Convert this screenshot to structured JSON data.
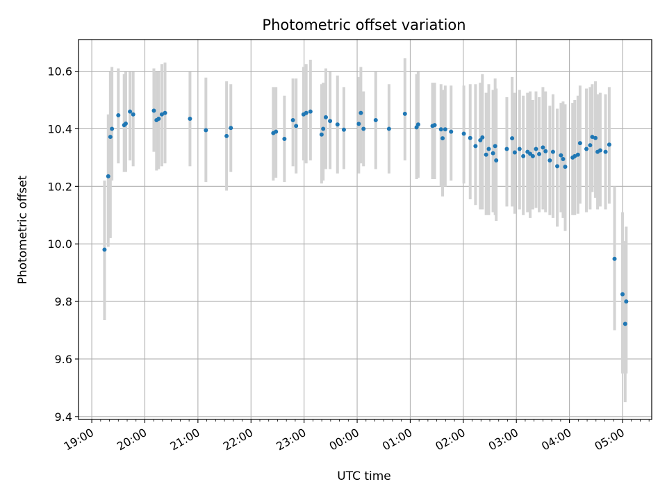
{
  "chart_data": {
    "type": "scatter",
    "title": "Photometric offset variation",
    "xlabel": "UTC time",
    "ylabel": "Photometric offset",
    "x_unit": "hours since 19:00 UTC",
    "xlim": [
      -0.25,
      10.55
    ],
    "ylim": [
      9.39,
      10.71
    ],
    "grid": true,
    "marker_color": "#1f77b4",
    "errorbar_color": "#d3d3d3",
    "x_ticks": [
      {
        "value": 0,
        "label": "19:00"
      },
      {
        "value": 1,
        "label": "20:00"
      },
      {
        "value": 2,
        "label": "21:00"
      },
      {
        "value": 3,
        "label": "22:00"
      },
      {
        "value": 4,
        "label": "23:00"
      },
      {
        "value": 5,
        "label": "00:00"
      },
      {
        "value": 6,
        "label": "01:00"
      },
      {
        "value": 7,
        "label": "02:00"
      },
      {
        "value": 8,
        "label": "03:00"
      },
      {
        "value": 9,
        "label": "04:00"
      },
      {
        "value": 10,
        "label": "05:00"
      }
    ],
    "y_ticks": [
      {
        "value": 9.4,
        "label": "9.4"
      },
      {
        "value": 9.6,
        "label": "9.6"
      },
      {
        "value": 9.8,
        "label": "9.8"
      },
      {
        "value": 10.0,
        "label": "10.0"
      },
      {
        "value": 10.2,
        "label": "10.2"
      },
      {
        "value": 10.4,
        "label": "10.4"
      },
      {
        "value": 10.6,
        "label": "10.6"
      }
    ],
    "series": [
      {
        "name": "offset",
        "x": [
          0.24,
          0.31,
          0.35,
          0.38,
          0.5,
          0.61,
          0.64,
          0.72,
          0.78,
          1.17,
          1.22,
          1.26,
          1.32,
          1.38,
          1.85,
          2.15,
          2.54,
          2.62,
          3.42,
          3.47,
          3.63,
          3.79,
          3.85,
          3.99,
          4.04,
          4.12,
          4.33,
          4.36,
          4.41,
          4.49,
          4.63,
          4.75,
          5.03,
          5.07,
          5.12,
          5.35,
          5.6,
          5.9,
          6.12,
          6.15,
          6.42,
          6.46,
          6.58,
          6.61,
          6.66,
          6.77,
          7.01,
          7.13,
          7.23,
          7.32,
          7.36,
          7.43,
          7.48,
          7.56,
          7.6,
          7.62,
          7.82,
          7.92,
          7.97,
          8.06,
          8.13,
          8.21,
          8.26,
          8.31,
          8.37,
          8.43,
          8.5,
          8.55,
          8.63,
          8.69,
          8.77,
          8.84,
          8.88,
          8.92,
          9.06,
          9.1,
          9.16,
          9.2,
          9.32,
          9.39,
          9.43,
          9.49,
          9.53,
          9.58,
          9.68,
          9.75,
          9.85,
          10.0,
          10.05,
          10.07
        ],
        "y": [
          9.98,
          10.235,
          10.372,
          10.4,
          10.447,
          10.413,
          10.418,
          10.46,
          10.45,
          10.463,
          10.43,
          10.435,
          10.45,
          10.455,
          10.435,
          10.395,
          10.375,
          10.403,
          10.385,
          10.39,
          10.365,
          10.43,
          10.41,
          10.45,
          10.455,
          10.46,
          10.38,
          10.4,
          10.44,
          10.427,
          10.415,
          10.397,
          10.417,
          10.455,
          10.4,
          10.43,
          10.4,
          10.452,
          10.405,
          10.415,
          10.41,
          10.413,
          10.398,
          10.367,
          10.398,
          10.39,
          10.383,
          10.368,
          10.34,
          10.36,
          10.37,
          10.31,
          10.33,
          10.315,
          10.34,
          10.29,
          10.33,
          10.367,
          10.318,
          10.33,
          10.305,
          10.32,
          10.313,
          10.305,
          10.33,
          10.312,
          10.335,
          10.322,
          10.29,
          10.32,
          10.27,
          10.308,
          10.295,
          10.268,
          10.3,
          10.305,
          10.31,
          10.35,
          10.33,
          10.343,
          10.372,
          10.368,
          10.32,
          10.325,
          10.32,
          10.345,
          9.948,
          9.825,
          9.722,
          9.8
        ],
        "yerr_low": [
          9.735,
          9.99,
          10.02,
          10.22,
          10.28,
          10.25,
          10.25,
          10.29,
          10.27,
          10.32,
          10.255,
          10.26,
          10.27,
          10.28,
          10.27,
          10.215,
          10.185,
          10.25,
          10.22,
          10.23,
          10.215,
          10.27,
          10.245,
          10.29,
          10.28,
          10.29,
          10.21,
          10.22,
          10.26,
          10.26,
          10.245,
          10.26,
          10.245,
          10.28,
          10.27,
          10.26,
          10.245,
          10.29,
          10.225,
          10.23,
          10.225,
          10.225,
          10.2,
          10.165,
          10.2,
          10.22,
          10.21,
          10.155,
          10.135,
          10.12,
          10.12,
          10.1,
          10.1,
          10.11,
          10.1,
          10.08,
          10.13,
          10.13,
          10.105,
          10.12,
          10.1,
          10.11,
          10.09,
          10.12,
          10.125,
          10.11,
          10.12,
          10.11,
          10.1,
          10.09,
          10.06,
          10.11,
          10.09,
          10.045,
          10.1,
          10.1,
          10.105,
          10.14,
          10.11,
          10.12,
          10.18,
          10.16,
          10.12,
          10.13,
          10.12,
          10.14,
          9.7,
          9.55,
          9.45,
          9.55
        ],
        "yerr_high": [
          10.22,
          10.45,
          10.6,
          10.615,
          10.61,
          10.59,
          10.6,
          10.6,
          10.6,
          10.61,
          10.6,
          10.6,
          10.625,
          10.63,
          10.6,
          10.578,
          10.565,
          10.555,
          10.545,
          10.545,
          10.515,
          10.575,
          10.575,
          10.615,
          10.625,
          10.64,
          10.555,
          10.56,
          10.61,
          10.6,
          10.585,
          10.545,
          10.58,
          10.615,
          10.53,
          10.6,
          10.555,
          10.645,
          10.59,
          10.6,
          10.56,
          10.56,
          10.555,
          10.535,
          10.55,
          10.55,
          10.55,
          10.555,
          10.555,
          10.56,
          10.59,
          10.525,
          10.555,
          10.535,
          10.575,
          10.54,
          10.51,
          10.58,
          10.525,
          10.535,
          10.515,
          10.525,
          10.53,
          10.5,
          10.53,
          10.51,
          10.545,
          10.53,
          10.48,
          10.52,
          10.47,
          10.49,
          10.495,
          10.485,
          10.49,
          10.5,
          10.515,
          10.55,
          10.54,
          10.545,
          10.555,
          10.565,
          10.52,
          10.525,
          10.52,
          10.545,
          10.2,
          10.11,
          10.01,
          10.06
        ]
      }
    ]
  }
}
